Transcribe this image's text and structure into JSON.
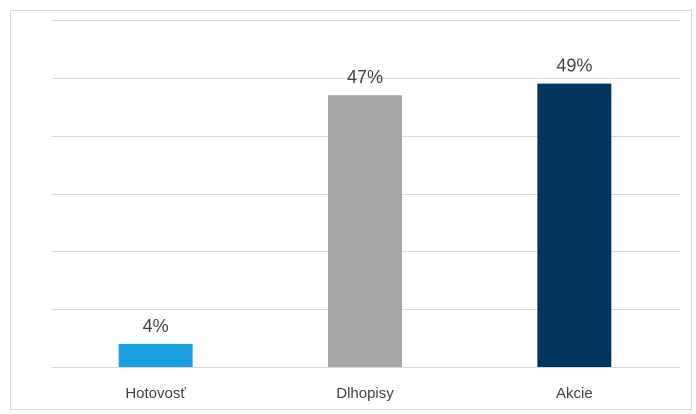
{
  "chart_data": {
    "type": "bar",
    "categories": [
      "Hotovosť",
      "Dlhopisy",
      "Akcie"
    ],
    "values": [
      4,
      47,
      49
    ],
    "value_labels": [
      "4%",
      "47%",
      "49%"
    ],
    "colors": [
      "#1a9fe0",
      "#a6a6a6",
      "#00355f"
    ],
    "ylim": [
      0,
      60
    ],
    "grid": true,
    "gridline_color": "#d9d9d9",
    "title": "",
    "xlabel": "",
    "ylabel": ""
  }
}
